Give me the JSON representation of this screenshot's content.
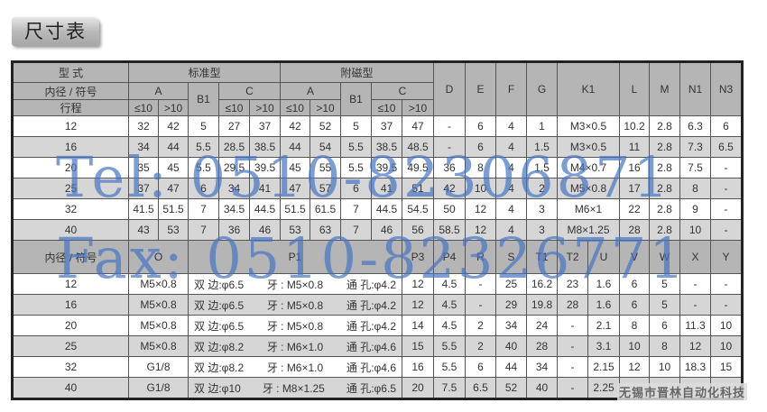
{
  "title": "尺寸表",
  "top": {
    "type_label": "型 式",
    "standard": "标准型",
    "magnetic": "附磁型",
    "bore_label": "内径 / 符号",
    "stroke_label": "行程",
    "A": "A",
    "B1": "B1",
    "C": "C",
    "le10": "≤10",
    "gt10": ">10",
    "cols": [
      "D",
      "E",
      "F",
      "G",
      "K1",
      "L",
      "M",
      "N1",
      "N3"
    ],
    "rows": [
      [
        "12",
        "32",
        "42",
        "5",
        "27",
        "37",
        "42",
        "52",
        "5",
        "37",
        "47",
        "-",
        "6",
        "4",
        "1",
        "M3×0.5",
        "10.2",
        "2.8",
        "6.3",
        "6"
      ],
      [
        "16",
        "34",
        "44",
        "5.5",
        "28.5",
        "38.5",
        "44",
        "54",
        "5.5",
        "38.5",
        "48.5",
        "-",
        "6",
        "4",
        "1.5",
        "M3×0.5",
        "11",
        "2.8",
        "7.3",
        "6.5"
      ],
      [
        "20",
        "35",
        "45",
        "5.5",
        "29.5",
        "39.5",
        "45",
        "55",
        "5.5",
        "39.5",
        "49.5",
        "36",
        "8",
        "4",
        "1.5",
        "M4×0.7",
        "16",
        "2.8",
        "7.5",
        "-"
      ],
      [
        "25",
        "37",
        "47",
        "6",
        "34",
        "41",
        "47",
        "57",
        "6",
        "41",
        "51",
        "42",
        "10",
        "4",
        "2",
        "M5×0.8",
        "17",
        "2.8",
        "8",
        "-"
      ],
      [
        "32",
        "41.5",
        "51.5",
        "7",
        "34.5",
        "44.5",
        "51.5",
        "61.5",
        "7",
        "44.5",
        "54.5",
        "50",
        "12",
        "4",
        "3",
        "M6×1",
        "22",
        "2.8",
        "9",
        "-"
      ],
      [
        "40",
        "43",
        "53",
        "7",
        "36",
        "46",
        "53",
        "63",
        "7",
        "46",
        "56",
        "58.5",
        "12",
        "4",
        "3",
        "M8×1.25",
        "28",
        "2.8",
        "10",
        "-"
      ]
    ]
  },
  "bottom": {
    "bore_label": "内径 / 符号",
    "cols": [
      "O",
      "P1",
      "P3",
      "P4",
      "R",
      "S",
      "T1",
      "T2",
      "U",
      "V",
      "W",
      "X",
      "Y"
    ],
    "rows": [
      {
        "bore": "12",
        "O": "M5×0.8",
        "p1a": "双 边:φ6.5",
        "p1b": "牙 : M5×0.8",
        "p1c": "通 孔:φ4.2",
        "rest": [
          "12",
          "4.5",
          "-",
          "25",
          "16.2",
          "23",
          "1.6",
          "6",
          "5",
          "-",
          "-"
        ]
      },
      {
        "bore": "16",
        "O": "M5×0.8",
        "p1a": "双 边:φ6.5",
        "p1b": "牙 : M5×0.8",
        "p1c": "通 孔:φ4.2",
        "rest": [
          "12",
          "4.5",
          "-",
          "29",
          "19.8",
          "28",
          "1.6",
          "6",
          "5",
          "-",
          "-"
        ]
      },
      {
        "bore": "20",
        "O": "M5×0.8",
        "p1a": "双 边:φ6.5",
        "p1b": "牙 : M5×0.8",
        "p1c": "通 孔:φ4.2",
        "rest": [
          "14",
          "4.5",
          "2",
          "34",
          "24",
          "-",
          "2.1",
          "8",
          "6",
          "11.3",
          "10"
        ]
      },
      {
        "bore": "25",
        "O": "M5×0.8",
        "p1a": "双 边:φ8.2",
        "p1b": "牙 : M6×1.0",
        "p1c": "通 孔:φ4.6",
        "rest": [
          "15",
          "5.5",
          "2",
          "40",
          "28",
          "-",
          "3.1",
          "10",
          "8",
          "12",
          "10"
        ]
      },
      {
        "bore": "32",
        "O": "G1/8",
        "p1a": "双 边:φ8.2",
        "p1b": "牙 : M6×1.0",
        "p1c": "通 孔:φ4.6",
        "rest": [
          "16",
          "5.5",
          "6",
          "44",
          "34",
          "-",
          "2.15",
          "12",
          "10",
          "18.3",
          "15"
        ]
      },
      {
        "bore": "40",
        "O": "G1/8",
        "p1a": "双 边:φ10",
        "p1b": "牙 : M8×1.25",
        "p1c": "通 孔:φ6.5",
        "rest": [
          "20",
          "7.5",
          "6.5",
          "52",
          "40",
          "-",
          "2.25",
          "",
          "",
          "",
          ""
        ]
      }
    ]
  },
  "watermarks": {
    "tel": "Tel: 0510-82306871",
    "fax": "Fax: 0510-82326771",
    "company": "无锡市晋林自动化科技"
  },
  "colors": {
    "header": "#b5b5b5",
    "row_alt": "#d6d6d6",
    "watermark": "#4673c3"
  }
}
